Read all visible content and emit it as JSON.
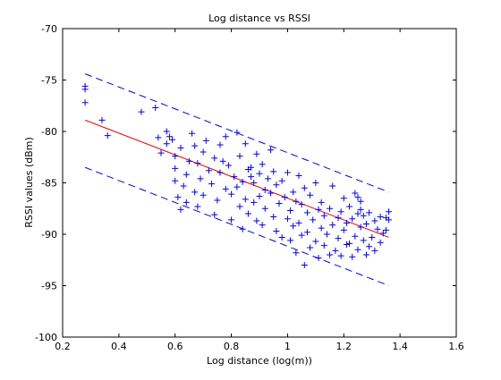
{
  "chart_data": {
    "type": "scatter",
    "title": "Log distance vs RSSI",
    "xlabel": "Log distance (log(m))",
    "ylabel": "RSSI values (dBm)",
    "xlim": [
      0.2,
      1.6
    ],
    "ylim": [
      -100,
      -70
    ],
    "xticks": [
      "0.2",
      "0.4",
      "0.6",
      "0.8",
      "1",
      "1.2",
      "1.4",
      "1.6"
    ],
    "yticks": [
      "-70",
      "-75",
      "-80",
      "-85",
      "-90",
      "-95",
      "-100"
    ],
    "xtick_values": [
      0.2,
      0.4,
      0.6,
      0.8,
      1.0,
      1.2,
      1.4,
      1.6
    ],
    "ytick_values": [
      -70,
      -75,
      -80,
      -85,
      -90,
      -95,
      -100
    ],
    "grid": false,
    "legend": "none",
    "marker": "+",
    "colors": {
      "points": "#0000ff",
      "fit_line": "#ff0000",
      "bounds": "#0000ff"
    },
    "fit_line": {
      "x": [
        0.28,
        1.36
      ],
      "y": [
        -78.9,
        -90.3
      ]
    },
    "upper_bound": {
      "x": [
        0.28,
        1.36
      ],
      "y": [
        -74.4,
        -85.9
      ]
    },
    "lower_bound": {
      "x": [
        0.28,
        1.36
      ],
      "y": [
        -83.5,
        -95.0
      ]
    },
    "points": [
      [
        0.28,
        -75.6
      ],
      [
        0.28,
        -75.9
      ],
      [
        0.28,
        -77.2
      ],
      [
        0.34,
        -78.9
      ],
      [
        0.36,
        -80.4
      ],
      [
        0.48,
        -78.1
      ],
      [
        0.53,
        -77.7
      ],
      [
        0.54,
        -80.6
      ],
      [
        0.55,
        -82.1
      ],
      [
        0.57,
        -80.0
      ],
      [
        0.57,
        -81.2
      ],
      [
        0.58,
        -80.5
      ],
      [
        0.59,
        -80.8
      ],
      [
        0.6,
        -82.4
      ],
      [
        0.6,
        -83.6
      ],
      [
        0.6,
        -84.8
      ],
      [
        0.61,
        -86.4
      ],
      [
        0.62,
        -81.6
      ],
      [
        0.62,
        -87.6
      ],
      [
        0.63,
        -85.3
      ],
      [
        0.64,
        -84.2
      ],
      [
        0.64,
        -86.9
      ],
      [
        0.65,
        -82.9
      ],
      [
        0.66,
        -80.2
      ],
      [
        0.67,
        -81.4
      ],
      [
        0.67,
        -85.9
      ],
      [
        0.68,
        -83.1
      ],
      [
        0.68,
        -87.3
      ],
      [
        0.69,
        -84.6
      ],
      [
        0.7,
        -82.0
      ],
      [
        0.7,
        -86.2
      ],
      [
        0.71,
        -80.9
      ],
      [
        0.72,
        -83.8
      ],
      [
        0.73,
        -85.1
      ],
      [
        0.74,
        -82.6
      ],
      [
        0.74,
        -88.1
      ],
      [
        0.75,
        -86.7
      ],
      [
        0.76,
        -81.3
      ],
      [
        0.76,
        -84.0
      ],
      [
        0.77,
        -82.9
      ],
      [
        0.78,
        -85.6
      ],
      [
        0.78,
        -80.5
      ],
      [
        0.79,
        -83.3
      ],
      [
        0.8,
        -86.1
      ],
      [
        0.8,
        -88.6
      ],
      [
        0.81,
        -84.4
      ],
      [
        0.82,
        -80.1
      ],
      [
        0.82,
        -85.4
      ],
      [
        0.83,
        -87.3
      ],
      [
        0.83,
        -82.4
      ],
      [
        0.84,
        -89.5
      ],
      [
        0.84,
        -84.9
      ],
      [
        0.85,
        -81.2
      ],
      [
        0.85,
        -86.6
      ],
      [
        0.86,
        -83.7
      ],
      [
        0.86,
        -88.0
      ],
      [
        0.87,
        -84.4
      ],
      [
        0.87,
        -83.5
      ],
      [
        0.88,
        -85.0
      ],
      [
        0.88,
        -86.9
      ],
      [
        0.89,
        -82.2
      ],
      [
        0.89,
        -88.7
      ],
      [
        0.9,
        -84.1
      ],
      [
        0.9,
        -86.3
      ],
      [
        0.91,
        -83.2
      ],
      [
        0.91,
        -89.1
      ],
      [
        0.92,
        -85.7
      ],
      [
        0.92,
        -87.5
      ],
      [
        0.93,
        -84.6
      ],
      [
        0.94,
        -81.8
      ],
      [
        0.94,
        -86.0
      ],
      [
        0.95,
        -88.3
      ],
      [
        0.95,
        -83.9
      ],
      [
        0.96,
        -85.2
      ],
      [
        0.96,
        -89.7
      ],
      [
        0.97,
        -87.0
      ],
      [
        0.98,
        -84.8
      ],
      [
        0.98,
        -90.3
      ],
      [
        0.99,
        -86.4
      ],
      [
        1.0,
        -88.5
      ],
      [
        1.0,
        -84.0
      ],
      [
        1.01,
        -87.7
      ],
      [
        1.01,
        -90.6
      ],
      [
        1.02,
        -85.9
      ],
      [
        1.02,
        -89.2
      ],
      [
        1.03,
        -86.8
      ],
      [
        1.03,
        -91.8
      ],
      [
        1.04,
        -84.3
      ],
      [
        1.04,
        -88.9
      ],
      [
        1.05,
        -87.1
      ],
      [
        1.05,
        -90.1
      ],
      [
        1.06,
        -93.0
      ],
      [
        1.06,
        -85.5
      ],
      [
        1.07,
        -89.8
      ],
      [
        1.07,
        -87.9
      ],
      [
        1.08,
        -91.3
      ],
      [
        1.08,
        -86.2
      ],
      [
        1.09,
        -88.6
      ],
      [
        1.1,
        -90.7
      ],
      [
        1.1,
        -85.0
      ],
      [
        1.11,
        -87.6
      ],
      [
        1.11,
        -92.3
      ],
      [
        1.12,
        -89.4
      ],
      [
        1.12,
        -86.9
      ],
      [
        1.13,
        -91.1
      ],
      [
        1.13,
        -88.2
      ],
      [
        1.14,
        -90.0
      ],
      [
        1.15,
        -87.5
      ],
      [
        1.15,
        -92.0
      ],
      [
        1.16,
        -89.1
      ],
      [
        1.16,
        -85.3
      ],
      [
        1.17,
        -91.6
      ],
      [
        1.18,
        -88.4
      ],
      [
        1.18,
        -90.4
      ],
      [
        1.19,
        -87.8
      ],
      [
        1.19,
        -92.1
      ],
      [
        1.2,
        -89.6
      ],
      [
        1.2,
        -86.5
      ],
      [
        1.21,
        -91.0
      ],
      [
        1.21,
        -88.9
      ],
      [
        1.22,
        -90.9
      ],
      [
        1.22,
        -87.3
      ],
      [
        1.23,
        -92.2
      ],
      [
        1.23,
        -88.5
      ],
      [
        1.24,
        -90.2
      ],
      [
        1.24,
        -86.0
      ],
      [
        1.25,
        -91.5
      ],
      [
        1.25,
        -88.0
      ],
      [
        1.25,
        -86.4
      ],
      [
        1.26,
        -89.3
      ],
      [
        1.26,
        -86.8
      ],
      [
        1.26,
        -87.6
      ],
      [
        1.27,
        -90.6
      ],
      [
        1.27,
        -88.2
      ],
      [
        1.28,
        -92.0
      ],
      [
        1.28,
        -89.0
      ],
      [
        1.29,
        -91.2
      ],
      [
        1.29,
        -87.9
      ],
      [
        1.3,
        -90.3
      ],
      [
        1.31,
        -88.7
      ],
      [
        1.31,
        -91.6
      ],
      [
        1.32,
        -89.5
      ],
      [
        1.33,
        -88.3
      ],
      [
        1.33,
        -90.8
      ],
      [
        1.34,
        -89.9
      ],
      [
        1.35,
        -88.4
      ],
      [
        1.35,
        -89.6
      ],
      [
        1.36,
        -87.8
      ],
      [
        1.36,
        -88.6
      ]
    ]
  }
}
